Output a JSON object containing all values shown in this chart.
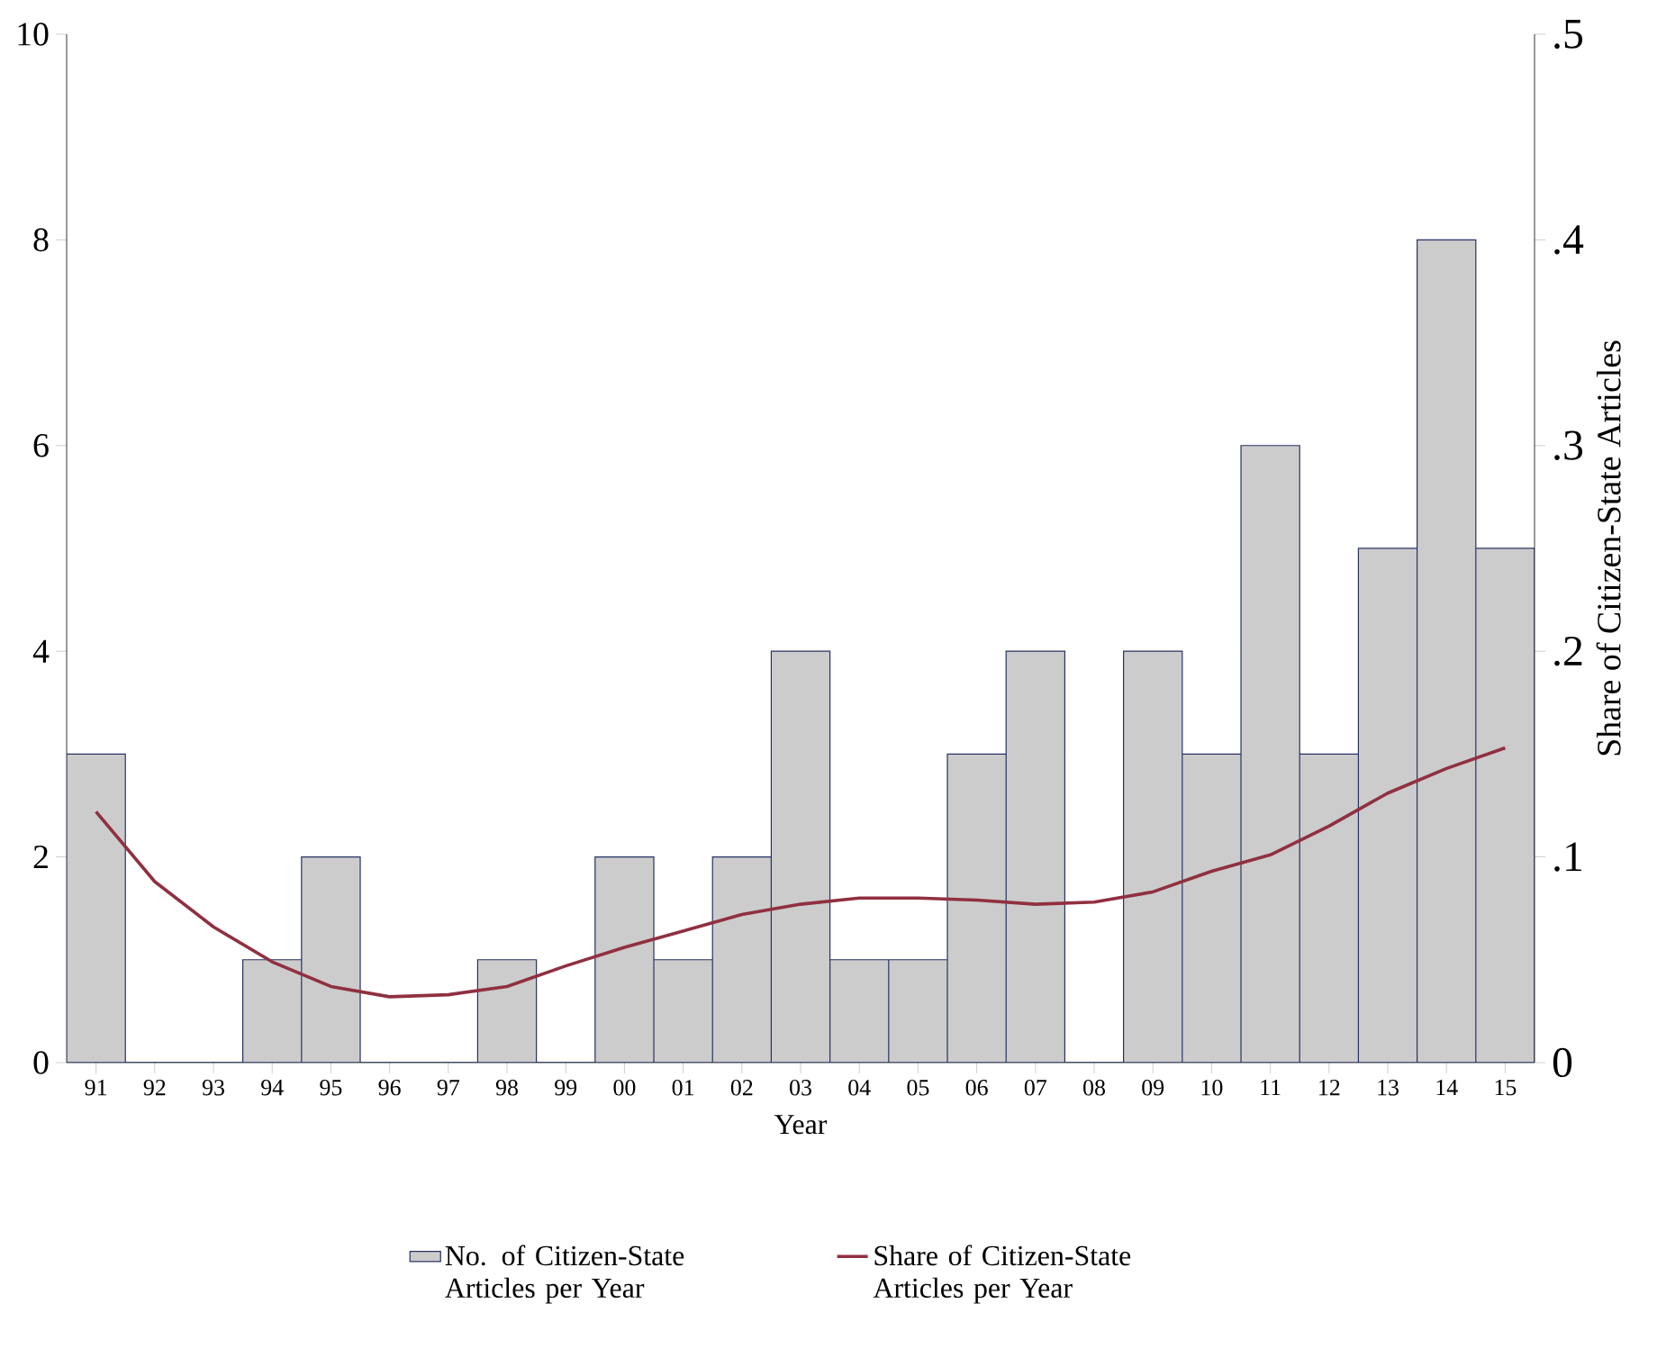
{
  "chart_data": {
    "type": "bar",
    "categories": [
      "91",
      "92",
      "93",
      "94",
      "95",
      "96",
      "97",
      "98",
      "99",
      "00",
      "01",
      "02",
      "03",
      "04",
      "05",
      "06",
      "07",
      "08",
      "09",
      "10",
      "11",
      "12",
      "13",
      "14",
      "15"
    ],
    "xlabel": "Year",
    "y2label": "Share of Citizen-State Articles",
    "ylim": [
      0,
      10
    ],
    "yticks": [
      0,
      2,
      4,
      6,
      8,
      10
    ],
    "y2lim": [
      0,
      0.5
    ],
    "y2ticks": [
      0,
      {
        "value": 0.1,
        "label": ".1"
      },
      {
        "value": 0.2,
        "label": ".2"
      },
      {
        "value": 0.3,
        "label": ".3"
      },
      {
        "value": 0.4,
        "label": ".4"
      },
      {
        "value": 0.5,
        "label": ".5"
      }
    ],
    "legend": "bottom",
    "series": [
      {
        "name": "No. of Citizen-State Articles per Year",
        "color": "#cccccc",
        "values": [
          3,
          0,
          0,
          1,
          2,
          0,
          0,
          1,
          0,
          2,
          1,
          2,
          4,
          1,
          1,
          3,
          4,
          0,
          4,
          3,
          6,
          3,
          5,
          8,
          5
        ]
      },
      {
        "name": "Share of Citizen-State Articles per Year",
        "type": "line",
        "axis": "y2",
        "color": "#903040",
        "values": [
          0.122,
          0.088,
          0.066,
          0.049,
          0.037,
          0.032,
          0.033,
          0.037,
          0.047,
          0.056,
          0.064,
          0.072,
          0.077,
          0.08,
          0.08,
          0.079,
          0.077,
          0.078,
          0.083,
          0.093,
          0.101,
          0.115,
          0.131,
          0.143,
          0.153
        ]
      }
    ]
  }
}
